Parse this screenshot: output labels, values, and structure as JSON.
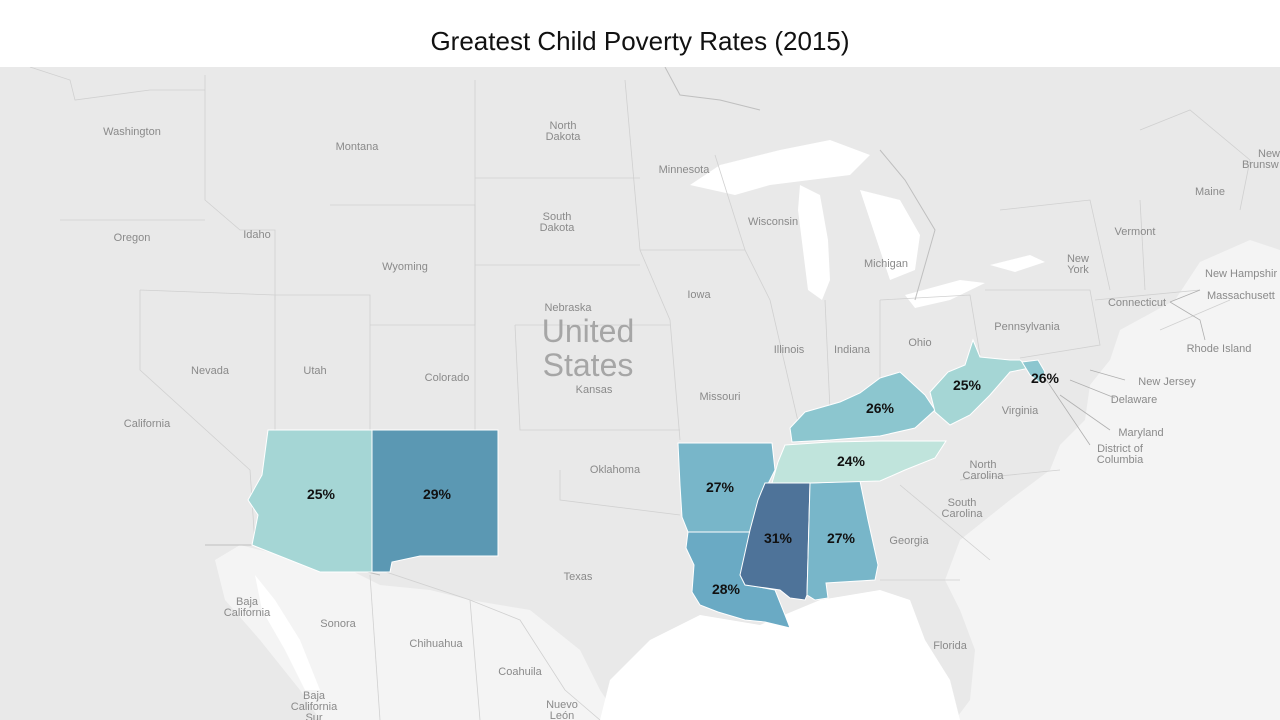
{
  "title": "Greatest Child Poverty Rates (2015)",
  "country_label": [
    "United",
    "States"
  ],
  "colors": {
    "background": "#ffffff",
    "land": "#e9e9e9",
    "water": "#ffffff",
    "label": "#8a8a8a"
  },
  "basemap_labels": {
    "washington": "Washington",
    "montana": "Montana",
    "north_dakota": [
      "North",
      "Dakota"
    ],
    "minnesota": "Minnesota",
    "oregon": "Oregon",
    "idaho": "Idaho",
    "south_dakota": [
      "South",
      "Dakota"
    ],
    "wisconsin": "Wisconsin",
    "wyoming": "Wyoming",
    "michigan": "Michigan",
    "iowa": "Iowa",
    "nebraska": "Nebraska",
    "nevada": "Nevada",
    "utah": "Utah",
    "colorado": "Colorado",
    "kansas": "Kansas",
    "illinois": "Illinois",
    "indiana": "Indiana",
    "ohio": "Ohio",
    "pennsylvania": "Pennsylvania",
    "missouri": "Missouri",
    "virginia": "Virginia",
    "california": "California",
    "oklahoma": "Oklahoma",
    "north_carolina": [
      "North",
      "Carolina"
    ],
    "south_carolina": [
      "South",
      "Carolina"
    ],
    "georgia": "Georgia",
    "texas": "Texas",
    "florida": "Florida",
    "baja_california": [
      "Baja",
      "California"
    ],
    "sonora": "Sonora",
    "chihuahua": "Chihuahua",
    "coahuila": "Coahuila",
    "baja_california_sur": [
      "Baja",
      "California",
      "Sur"
    ],
    "nuevo_leon": [
      "Nuevo",
      "León"
    ],
    "vermont": "Vermont",
    "maine": "Maine",
    "new_york": [
      "New",
      "York"
    ],
    "new_hampshire": "New Hampshir",
    "massachusetts": "Massachusett",
    "connecticut": "Connecticut",
    "rhode_island": "Rhode Island",
    "new_jersey": "New Jersey",
    "delaware": "Delaware",
    "maryland": "Maryland",
    "dc": [
      "District of",
      "Columbia"
    ],
    "new_brunswick": [
      "New",
      "Brunsw"
    ]
  },
  "highlighted_states": [
    {
      "name": "Arizona",
      "rate": 25,
      "label": "25%",
      "color": "#a5d6d5"
    },
    {
      "name": "New Mexico",
      "rate": 29,
      "label": "29%",
      "color": "#5b98b3"
    },
    {
      "name": "Arkansas",
      "rate": 27,
      "label": "27%",
      "color": "#78b6c9"
    },
    {
      "name": "Louisiana",
      "rate": 28,
      "label": "28%",
      "color": "#6aaac4"
    },
    {
      "name": "Mississippi",
      "rate": 31,
      "label": "31%",
      "color": "#4e7399"
    },
    {
      "name": "Alabama",
      "rate": 27,
      "label": "27%",
      "color": "#78b6c9"
    },
    {
      "name": "Tennessee",
      "rate": 24,
      "label": "24%",
      "color": "#c0e4dc"
    },
    {
      "name": "Kentucky",
      "rate": 26,
      "label": "26%",
      "color": "#8cc6cf"
    },
    {
      "name": "West Virginia",
      "rate": 25,
      "label": "25%",
      "color": "#a5d6d5"
    },
    {
      "name": "District of Columbia",
      "rate": 26,
      "label": "26%",
      "color": "#8cc6cf"
    }
  ]
}
